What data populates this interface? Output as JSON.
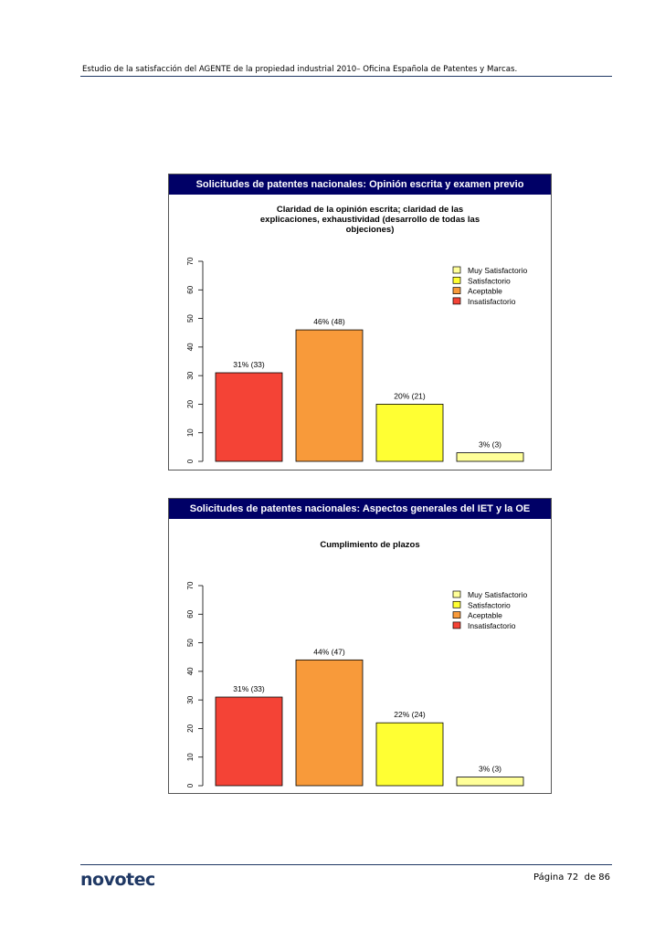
{
  "header": {
    "text": "Estudio de la satisfacción del AGENTE de la propiedad industrial 2010– Oficina Española de Patentes y Marcas."
  },
  "footer": {
    "logo": "novotec",
    "page": "Página 72  de 86"
  },
  "chart_data": [
    {
      "type": "bar",
      "banner": "Solicitudes de patentes nacionales: Opinión escrita y examen previo",
      "title": "Claridad de la opinión escrita; claridad de las explicaciones, exhaustividad (desarrollo de todas las objeciones)",
      "title_lines": [
        "Claridad de la opinión escrita; claridad de las",
        "explicaciones, exhaustividad (desarrollo de todas las",
        "objeciones)"
      ],
      "categories": [
        "Insatisfactorio",
        "Aceptable",
        "Satisfactorio",
        "Muy Satisfactorio"
      ],
      "values": [
        31,
        46,
        20,
        3
      ],
      "bar_labels": [
        "31% (33)",
        "46% (48)",
        "20% (21)",
        "3% (3)"
      ],
      "colors": [
        "#f44336",
        "#f89a3a",
        "#ffff33",
        "#ffff99"
      ],
      "ylim": [
        0,
        70
      ],
      "yticks": [
        "0",
        "10",
        "20",
        "30",
        "40",
        "50",
        "60",
        "70"
      ],
      "legend": [
        "Muy Satisfactorio",
        "Satisfactorio",
        "Aceptable",
        "Insatisfactorio"
      ],
      "legend_colors": [
        "#ffff99",
        "#ffff33",
        "#f89a3a",
        "#f44336"
      ],
      "legend_position": "top-right",
      "grid": false
    },
    {
      "type": "bar",
      "banner": "Solicitudes de patentes nacionales: Aspectos generales del IET y la OE",
      "title": "Cumplimiento de plazos",
      "title_lines": [
        "Cumplimiento de plazos"
      ],
      "categories": [
        "Insatisfactorio",
        "Aceptable",
        "Satisfactorio",
        "Muy Satisfactorio"
      ],
      "values": [
        31,
        44,
        22,
        3
      ],
      "bar_labels": [
        "31% (33)",
        "44% (47)",
        "22% (24)",
        "3% (3)"
      ],
      "colors": [
        "#f44336",
        "#f89a3a",
        "#ffff33",
        "#ffff99"
      ],
      "ylim": [
        0,
        70
      ],
      "yticks": [
        "0",
        "10",
        "20",
        "30",
        "40",
        "50",
        "60",
        "70"
      ],
      "legend": [
        "Muy Satisfactorio",
        "Satisfactorio",
        "Aceptable",
        "Insatisfactorio"
      ],
      "legend_colors": [
        "#ffff99",
        "#ffff33",
        "#f89a3a",
        "#f44336"
      ],
      "legend_position": "top-right",
      "grid": false
    }
  ]
}
